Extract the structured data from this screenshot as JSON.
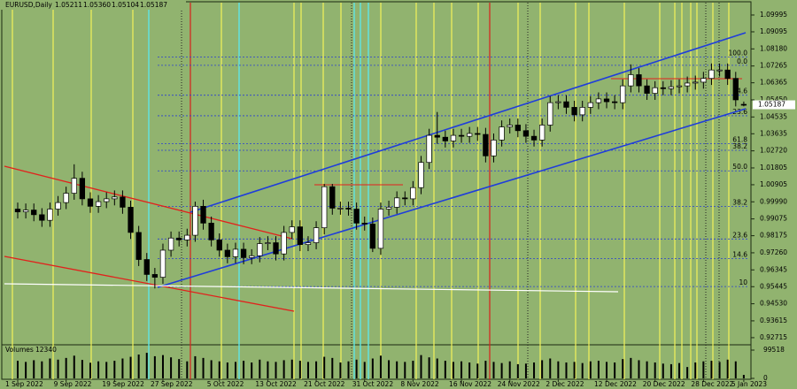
{
  "chart_data": {
    "type": "candlestick",
    "symbol": "EURUSD,Daily",
    "last_labels": {
      "open": "1.05211",
      "high": "1.05360",
      "low": "1.05104",
      "close": "1.05187"
    },
    "volume_title": "Volumes",
    "categories": [
      "1 Sep 2022",
      null,
      null,
      null,
      null,
      null,
      "9 Sep 2022",
      null,
      null,
      null,
      null,
      null,
      "19 Sep 2022",
      null,
      null,
      null,
      null,
      null,
      "27 Sep 2022",
      null,
      null,
      null,
      null,
      null,
      null,
      "5 Oct 2022",
      null,
      null,
      null,
      null,
      null,
      "13 Oct 2022",
      null,
      null,
      null,
      null,
      null,
      "21 Oct 2022",
      null,
      null,
      null,
      null,
      null,
      "31 Oct 2022",
      null,
      null,
      null,
      null,
      null,
      "8 Nov 2022",
      null,
      null,
      null,
      null,
      null,
      "16 Nov 2022",
      null,
      null,
      null,
      null,
      null,
      "24 Nov 2022",
      null,
      null,
      null,
      null,
      null,
      "2 Dec 2022",
      null,
      null,
      null,
      null,
      null,
      "12 Dec 2022",
      null,
      null,
      null,
      null,
      null,
      "20 Dec 2022",
      null,
      null,
      null,
      null,
      null,
      "28 Dec 2022",
      null,
      null,
      null,
      null,
      "5 Jan 2023"
    ],
    "open": [
      0.996,
      0.9945,
      0.9955,
      0.993,
      0.99,
      0.996,
      0.9995,
      1.0045,
      1.0125,
      1.0015,
      0.9975,
      1.0,
      1.0015,
      1.0025,
      0.997,
      0.9835,
      0.969,
      0.961,
      0.9595,
      0.974,
      0.9805,
      0.9795,
      0.982,
      0.9975,
      0.9885,
      0.9795,
      0.974,
      0.9705,
      0.9745,
      0.97,
      0.971,
      0.9775,
      0.978,
      0.972,
      0.9835,
      0.9865,
      0.977,
      0.978,
      0.986,
      1.008,
      0.9965,
      0.9965,
      0.996,
      0.9885,
      0.988,
      0.975,
      0.996,
      0.997,
      1.002,
      1.0015,
      1.0075,
      1.021,
      1.0355,
      1.0345,
      1.0325,
      1.0355,
      1.035,
      1.0365,
      1.036,
      1.0245,
      1.033,
      1.04,
      1.041,
      1.038,
      1.035,
      1.033,
      1.041,
      1.053,
      1.0535,
      1.0505,
      1.0465,
      1.0505,
      1.053,
      1.055,
      1.0535,
      1.053,
      1.062,
      1.068,
      1.062,
      1.058,
      1.061,
      1.0605,
      1.0615,
      1.062,
      1.0635,
      1.064,
      1.066,
      1.0705,
      1.0705,
      1.066,
      1.05211
    ],
    "high": [
      0.9995,
      0.999,
      0.999,
      0.9965,
      0.9995,
      1.003,
      1.008,
      1.02,
      1.016,
      1.005,
      1.0035,
      1.005,
      1.006,
      1.006,
      1.0005,
      0.987,
      0.9725,
      0.9645,
      0.9775,
      0.984,
      0.984,
      0.9855,
      1.0,
      1.001,
      0.992,
      0.983,
      0.9775,
      0.978,
      0.978,
      0.9745,
      0.981,
      0.9815,
      0.9815,
      0.987,
      0.99,
      0.99,
      0.9815,
      0.9895,
      1.0095,
      1.0095,
      1.0,
      1.0,
      0.9995,
      0.992,
      0.9915,
      0.9995,
      1.0005,
      1.0055,
      1.0055,
      1.011,
      1.0245,
      1.039,
      1.048,
      1.038,
      1.039,
      1.039,
      1.04,
      1.04,
      1.0395,
      1.0365,
      1.0435,
      1.0445,
      1.0445,
      1.0415,
      1.0385,
      1.0445,
      1.0565,
      1.057,
      1.057,
      1.054,
      1.054,
      1.0565,
      1.0585,
      1.0585,
      1.057,
      1.0655,
      1.0735,
      1.0715,
      1.0655,
      1.0645,
      1.0645,
      1.065,
      1.0655,
      1.067,
      1.0675,
      1.0695,
      1.074,
      1.074,
      1.074,
      1.0695,
      1.0536
    ],
    "low": [
      0.991,
      0.991,
      0.9895,
      0.9865,
      0.9865,
      0.9925,
      0.996,
      1.001,
      0.998,
      0.994,
      0.994,
      0.9965,
      0.998,
      0.9935,
      0.98,
      0.9655,
      0.9575,
      0.9535,
      0.956,
      0.9705,
      0.976,
      0.976,
      0.9785,
      0.985,
      0.976,
      0.9705,
      0.967,
      0.967,
      0.9665,
      0.9665,
      0.9675,
      0.974,
      0.9685,
      0.9685,
      0.98,
      0.9735,
      0.9735,
      0.9745,
      0.9825,
      0.993,
      0.993,
      0.9925,
      0.985,
      0.9845,
      0.973,
      0.9715,
      0.9925,
      0.9935,
      0.998,
      0.998,
      1.004,
      1.0175,
      1.031,
      1.029,
      1.029,
      1.0315,
      1.0315,
      1.0325,
      1.021,
      1.021,
      1.0295,
      1.0365,
      1.0345,
      1.0315,
      1.0295,
      1.0295,
      1.0375,
      1.0495,
      1.047,
      1.043,
      1.043,
      1.047,
      1.0495,
      1.05,
      1.0495,
      1.0495,
      1.0585,
      1.0585,
      1.0545,
      1.0545,
      1.057,
      1.057,
      1.058,
      1.0585,
      1.06,
      1.0605,
      1.0625,
      1.067,
      1.0625,
      1.051,
      1.05104
    ],
    "close": [
      0.9945,
      0.9955,
      0.993,
      0.99,
      0.996,
      0.9995,
      1.0045,
      1.0125,
      1.0015,
      0.9975,
      1.0,
      1.0015,
      1.0025,
      0.997,
      0.9835,
      0.969,
      0.961,
      0.9595,
      0.974,
      0.9805,
      0.9795,
      0.982,
      0.9975,
      0.9885,
      0.9795,
      0.974,
      0.9705,
      0.9745,
      0.97,
      0.971,
      0.9775,
      0.978,
      0.972,
      0.9835,
      0.9865,
      0.977,
      0.978,
      0.986,
      1.008,
      0.9965,
      0.9965,
      0.996,
      0.9885,
      0.988,
      0.975,
      0.996,
      0.997,
      1.002,
      1.0015,
      1.0075,
      1.021,
      1.0355,
      1.0345,
      1.0325,
      1.0355,
      1.035,
      1.0365,
      1.036,
      1.0245,
      1.033,
      1.04,
      1.041,
      1.038,
      1.035,
      1.033,
      1.041,
      1.053,
      1.0535,
      1.0505,
      1.0465,
      1.0505,
      1.053,
      1.055,
      1.0535,
      1.053,
      1.062,
      1.068,
      1.062,
      1.058,
      1.061,
      1.0605,
      1.0615,
      1.062,
      1.0635,
      1.064,
      1.066,
      1.0705,
      1.0705,
      1.066,
      1.0545,
      1.05187
    ],
    "volume": [
      62000,
      58000,
      64000,
      60000,
      70000,
      66000,
      72000,
      80000,
      65000,
      55000,
      60000,
      58000,
      62000,
      70000,
      76000,
      84000,
      90000,
      78000,
      82000,
      74000,
      68000,
      60000,
      78000,
      72000,
      64000,
      60000,
      56000,
      58000,
      62000,
      56000,
      66000,
      60000,
      58000,
      64000,
      66000,
      62000,
      58000,
      60000,
      76000,
      72000,
      56000,
      60000,
      66000,
      58000,
      70000,
      80000,
      64000,
      60000,
      58000,
      62000,
      82000,
      74000,
      70000,
      62000,
      58000,
      60000,
      56000,
      52000,
      62000,
      58000,
      54000,
      60000,
      50000,
      52000,
      56000,
      64000,
      70000,
      60000,
      56000,
      58000,
      54000,
      60000,
      62000,
      58000,
      56000,
      68000,
      72000,
      64000,
      60000,
      56000,
      52000,
      50000,
      54000,
      40000,
      56000,
      60000,
      62000,
      58000,
      66000,
      60000,
      12340
    ],
    "ylim": [
      0.9238,
      1.1042
    ],
    "yticks": [
      {
        "value": 1.09995,
        "label": "1.09995"
      },
      1.09095,
      {
        "value": 1.0818,
        "label": "1.08180"
      },
      1.07265,
      1.06365,
      {
        "value": 1.0545,
        "label": "1.05450"
      },
      1.04535,
      1.03635,
      {
        "value": 1.0272,
        "label": "1.02720"
      },
      1.01805,
      1.00905,
      {
        "value": 0.9999,
        "label": "0.99990"
      },
      0.99075,
      0.98175,
      {
        "value": 0.9726,
        "label": "0.97260"
      },
      0.96345,
      0.95445,
      {
        "value": 0.9453,
        "label": "0.94530"
      },
      0.93615,
      0.92715
    ],
    "volume_lim": [
      0,
      112000
    ],
    "volume_ticks": [
      99518,
      0
    ],
    "bull_color": "#ffffff",
    "bear_color": "#000000",
    "fibo_levels": [
      {
        "label": "100.0",
        "value": 1.0775
      },
      {
        "label": "0.0",
        "value": 1.073
      },
      {
        "label": "14.6",
        "value": 1.057
      },
      {
        "label": "23.6",
        "value": 1.046
      },
      {
        "label": "61.8",
        "value": 1.031
      },
      {
        "label": "38.2",
        "value": 1.0275
      },
      {
        "label": "50.0",
        "value": 1.0165
      },
      {
        "label": "38.2",
        "value": 0.9975
      },
      {
        "label": "23.6",
        "value": 0.98
      },
      {
        "label": "14.6",
        "value": 0.9695
      },
      {
        "label": "10",
        "value": 0.9545
      }
    ]
  }
}
